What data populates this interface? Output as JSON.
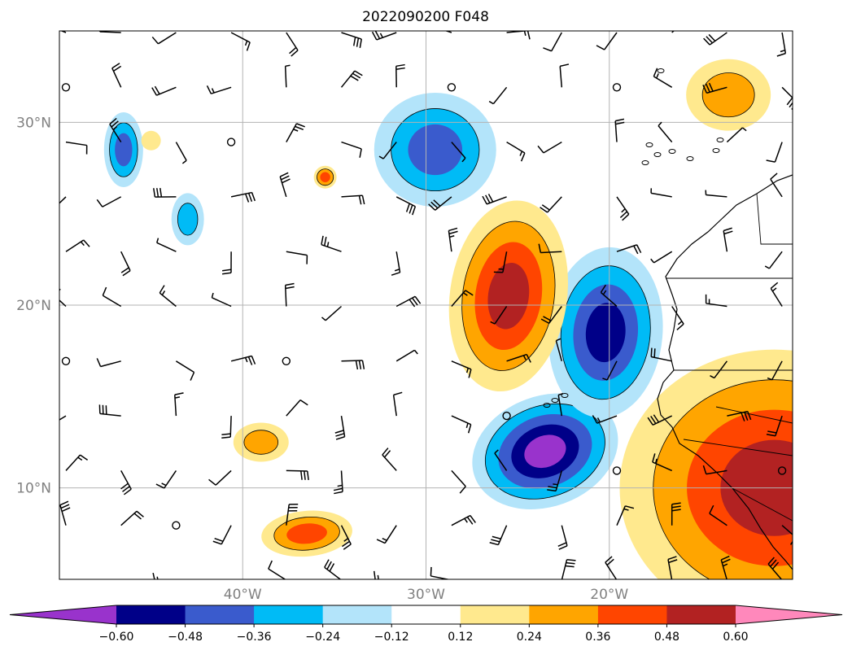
{
  "chart_data": {
    "type": "heatmap",
    "title": "2022090200 F048",
    "projection": "map",
    "lon_range": [
      -50,
      -10
    ],
    "lat_range": [
      5,
      35
    ],
    "lon_ticks": [
      {
        "value": -40,
        "label": "40°W"
      },
      {
        "value": -30,
        "label": "30°W"
      },
      {
        "value": -20,
        "label": "20°W"
      }
    ],
    "lat_ticks": [
      {
        "value": 30,
        "label": "30°N"
      },
      {
        "value": 20,
        "label": "20°N"
      },
      {
        "value": 10,
        "label": "10°N"
      }
    ],
    "grid": true,
    "colorbar": {
      "orientation": "horizontal",
      "extend": "both",
      "levels": [
        -0.6,
        -0.48,
        -0.36,
        -0.24,
        -0.12,
        0.12,
        0.24,
        0.36,
        0.48,
        0.6
      ],
      "tick_labels": [
        "−0.60",
        "−0.48",
        "−0.36",
        "−0.24",
        "−0.12",
        "0.12",
        "0.24",
        "0.36",
        "0.48",
        "0.60"
      ],
      "colors": [
        "#9933cc",
        "#000088",
        "#3a5bcd",
        "#00bbf6",
        "#b3e4fa",
        "#ffffff",
        "#ffe98e",
        "#ffa500",
        "#ff4500",
        "#b22222",
        "#ff88bb"
      ]
    },
    "anomaly_regions": [
      {
        "lon": -23.5,
        "lat": 12.0,
        "value": -0.65
      },
      {
        "lon": -20.2,
        "lat": 18.5,
        "value": -0.55
      },
      {
        "lon": -29.5,
        "lat": 28.5,
        "value": -0.4
      },
      {
        "lon": -46.5,
        "lat": 28.5,
        "value": -0.4
      },
      {
        "lon": -43.0,
        "lat": 24.7,
        "value": -0.3
      },
      {
        "lon": -25.5,
        "lat": 20.5,
        "value": 0.52
      },
      {
        "lon": -11.0,
        "lat": 10.0,
        "value": 0.5
      },
      {
        "lon": -13.5,
        "lat": 31.5,
        "value": 0.35
      },
      {
        "lon": -39.0,
        "lat": 12.5,
        "value": 0.32
      },
      {
        "lon": -36.5,
        "lat": 7.5,
        "value": 0.4
      },
      {
        "lon": -45.0,
        "lat": 29.0,
        "value": 0.2
      },
      {
        "lon": -35.5,
        "lat": 27.0,
        "value": 0.36
      }
    ],
    "wind_barbs": "black wind barbs on a regular grid across the map",
    "coastline": "West Africa and Canary / Cape Verde islands outline"
  }
}
